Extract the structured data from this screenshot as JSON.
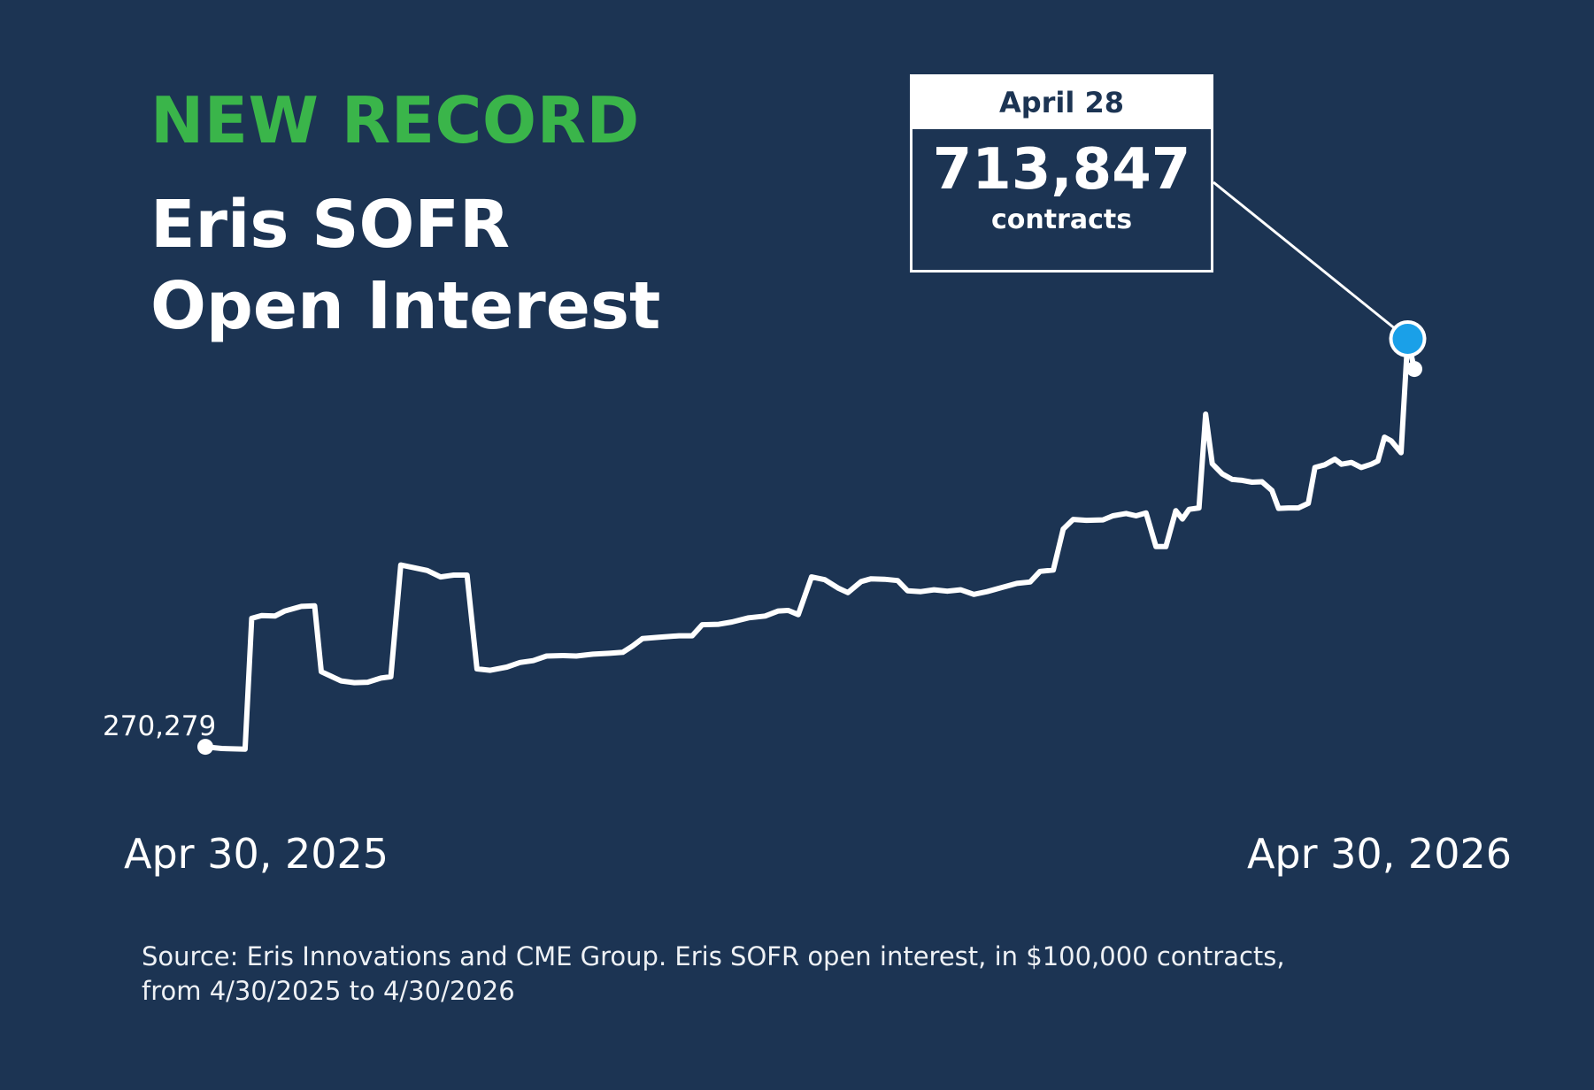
{
  "header": {
    "kicker": "NEW RECORD",
    "title_line1": "Eris SOFR",
    "title_line2": "Open Interest"
  },
  "colors": {
    "background": "#1c3453",
    "kicker": "#3ab54a",
    "line": "#ffffff",
    "highlight_marker": "#1aa0e8"
  },
  "callout": {
    "date": "April 28",
    "value": "713,847",
    "unit": "contracts"
  },
  "start_label": "270,279",
  "axis": {
    "start_label": "Apr 30, 2025",
    "end_label": "Apr 30, 2026"
  },
  "source": {
    "line1": "Source: Eris Innovations and CME Group. Eris SOFR open interest, in $100,000 contracts,",
    "line2": "from 4/30/2025 to 4/30/2026"
  },
  "chart_data": {
    "type": "line",
    "title": "Eris SOFR Open Interest",
    "xlabel": "",
    "ylabel": "",
    "unit": "contracts",
    "x_range": [
      "2025-04-30",
      "2026-04-30"
    ],
    "ylim": [
      230000,
      760000
    ],
    "grid": false,
    "legend": "none",
    "highlight": {
      "date": "2026-04-28",
      "value": 713847,
      "label": "April 28"
    },
    "series": [
      {
        "name": "",
        "points": [
          [
            "2025-04-30",
            270279
          ],
          [
            "2025-05-05",
            268500
          ],
          [
            "2025-05-12",
            267700
          ],
          [
            "2025-05-14",
            410000
          ],
          [
            "2025-05-17",
            413000
          ],
          [
            "2025-05-21",
            412500
          ],
          [
            "2025-05-24",
            418000
          ],
          [
            "2025-05-29",
            423000
          ],
          [
            "2025-06-02",
            423500
          ],
          [
            "2025-06-04",
            352000
          ],
          [
            "2025-06-07",
            347000
          ],
          [
            "2025-06-10",
            342000
          ],
          [
            "2025-06-14",
            340000
          ],
          [
            "2025-06-18",
            340500
          ],
          [
            "2025-06-22",
            345000
          ],
          [
            "2025-06-25",
            346500
          ],
          [
            "2025-06-28",
            468000
          ],
          [
            "2025-07-02",
            465000
          ],
          [
            "2025-07-06",
            462000
          ],
          [
            "2025-07-10",
            455000
          ],
          [
            "2025-07-14",
            457000
          ],
          [
            "2025-07-18",
            457000
          ],
          [
            "2025-07-21",
            355000
          ],
          [
            "2025-07-25",
            353500
          ],
          [
            "2025-07-30",
            357000
          ],
          [
            "2025-08-03",
            362000
          ],
          [
            "2025-08-07",
            364000
          ],
          [
            "2025-08-11",
            369000
          ],
          [
            "2025-08-16",
            369500
          ],
          [
            "2025-08-20",
            369000
          ],
          [
            "2025-08-25",
            371000
          ],
          [
            "2025-08-30",
            372000
          ],
          [
            "2025-09-03",
            373000
          ],
          [
            "2025-09-06",
            380000
          ],
          [
            "2025-09-09",
            388000
          ],
          [
            "2025-09-14",
            389500
          ],
          [
            "2025-09-20",
            391000
          ],
          [
            "2025-09-24",
            391000
          ],
          [
            "2025-09-27",
            403000
          ],
          [
            "2025-10-02",
            403500
          ],
          [
            "2025-10-06",
            406000
          ],
          [
            "2025-10-11",
            410500
          ],
          [
            "2025-10-16",
            412500
          ],
          [
            "2025-10-20",
            418000
          ],
          [
            "2025-10-23",
            418500
          ],
          [
            "2025-10-26",
            414000
          ],
          [
            "2025-10-30",
            455000
          ],
          [
            "2025-11-03",
            452000
          ],
          [
            "2025-11-07",
            443000
          ],
          [
            "2025-11-10",
            438000
          ],
          [
            "2025-11-14",
            450000
          ],
          [
            "2025-11-17",
            453000
          ],
          [
            "2025-11-21",
            452500
          ],
          [
            "2025-11-25",
            451000
          ],
          [
            "2025-11-28",
            440000
          ],
          [
            "2025-12-02",
            439000
          ],
          [
            "2025-12-06",
            441000
          ],
          [
            "2025-12-10",
            439500
          ],
          [
            "2025-12-14",
            441000
          ],
          [
            "2025-12-18",
            436000
          ],
          [
            "2025-12-22",
            439000
          ],
          [
            "2025-12-27",
            444000
          ],
          [
            "2025-12-31",
            448000
          ],
          [
            "2026-01-04",
            449500
          ],
          [
            "2026-01-07",
            461000
          ],
          [
            "2026-01-11",
            462500
          ],
          [
            "2026-01-14",
            507000
          ],
          [
            "2026-01-17",
            517500
          ],
          [
            "2026-01-21",
            516500
          ],
          [
            "2026-01-26",
            517000
          ],
          [
            "2026-01-29",
            521500
          ],
          [
            "2026-02-02",
            524000
          ],
          [
            "2026-02-05",
            521500
          ],
          [
            "2026-02-08",
            524500
          ],
          [
            "2026-02-11",
            488000
          ],
          [
            "2026-02-14",
            488000
          ],
          [
            "2026-02-17",
            527000
          ],
          [
            "2026-02-19",
            518000
          ],
          [
            "2026-02-21",
            528500
          ],
          [
            "2026-02-24",
            530000
          ],
          [
            "2026-02-26",
            632000
          ],
          [
            "2026-02-28",
            578000
          ],
          [
            "2026-03-03",
            567000
          ],
          [
            "2026-03-06",
            561000
          ],
          [
            "2026-03-09",
            560000
          ],
          [
            "2026-03-12",
            558000
          ],
          [
            "2026-03-15",
            558500
          ],
          [
            "2026-03-18",
            549000
          ],
          [
            "2026-03-20",
            529500
          ],
          [
            "2026-03-23",
            530000
          ],
          [
            "2026-03-26",
            530000
          ],
          [
            "2026-03-29",
            535000
          ],
          [
            "2026-03-31",
            574000
          ],
          [
            "2026-04-03",
            577000
          ],
          [
            "2026-04-06",
            583000
          ],
          [
            "2026-04-08",
            577500
          ],
          [
            "2026-04-11",
            579500
          ],
          [
            "2026-04-14",
            574000
          ],
          [
            "2026-04-17",
            577500
          ],
          [
            "2026-04-19",
            581000
          ],
          [
            "2026-04-21",
            607000
          ],
          [
            "2026-04-23",
            603000
          ],
          [
            "2026-04-26",
            590000
          ],
          [
            "2026-04-28",
            713847
          ],
          [
            "2026-04-30",
            681000
          ]
        ]
      }
    ]
  }
}
